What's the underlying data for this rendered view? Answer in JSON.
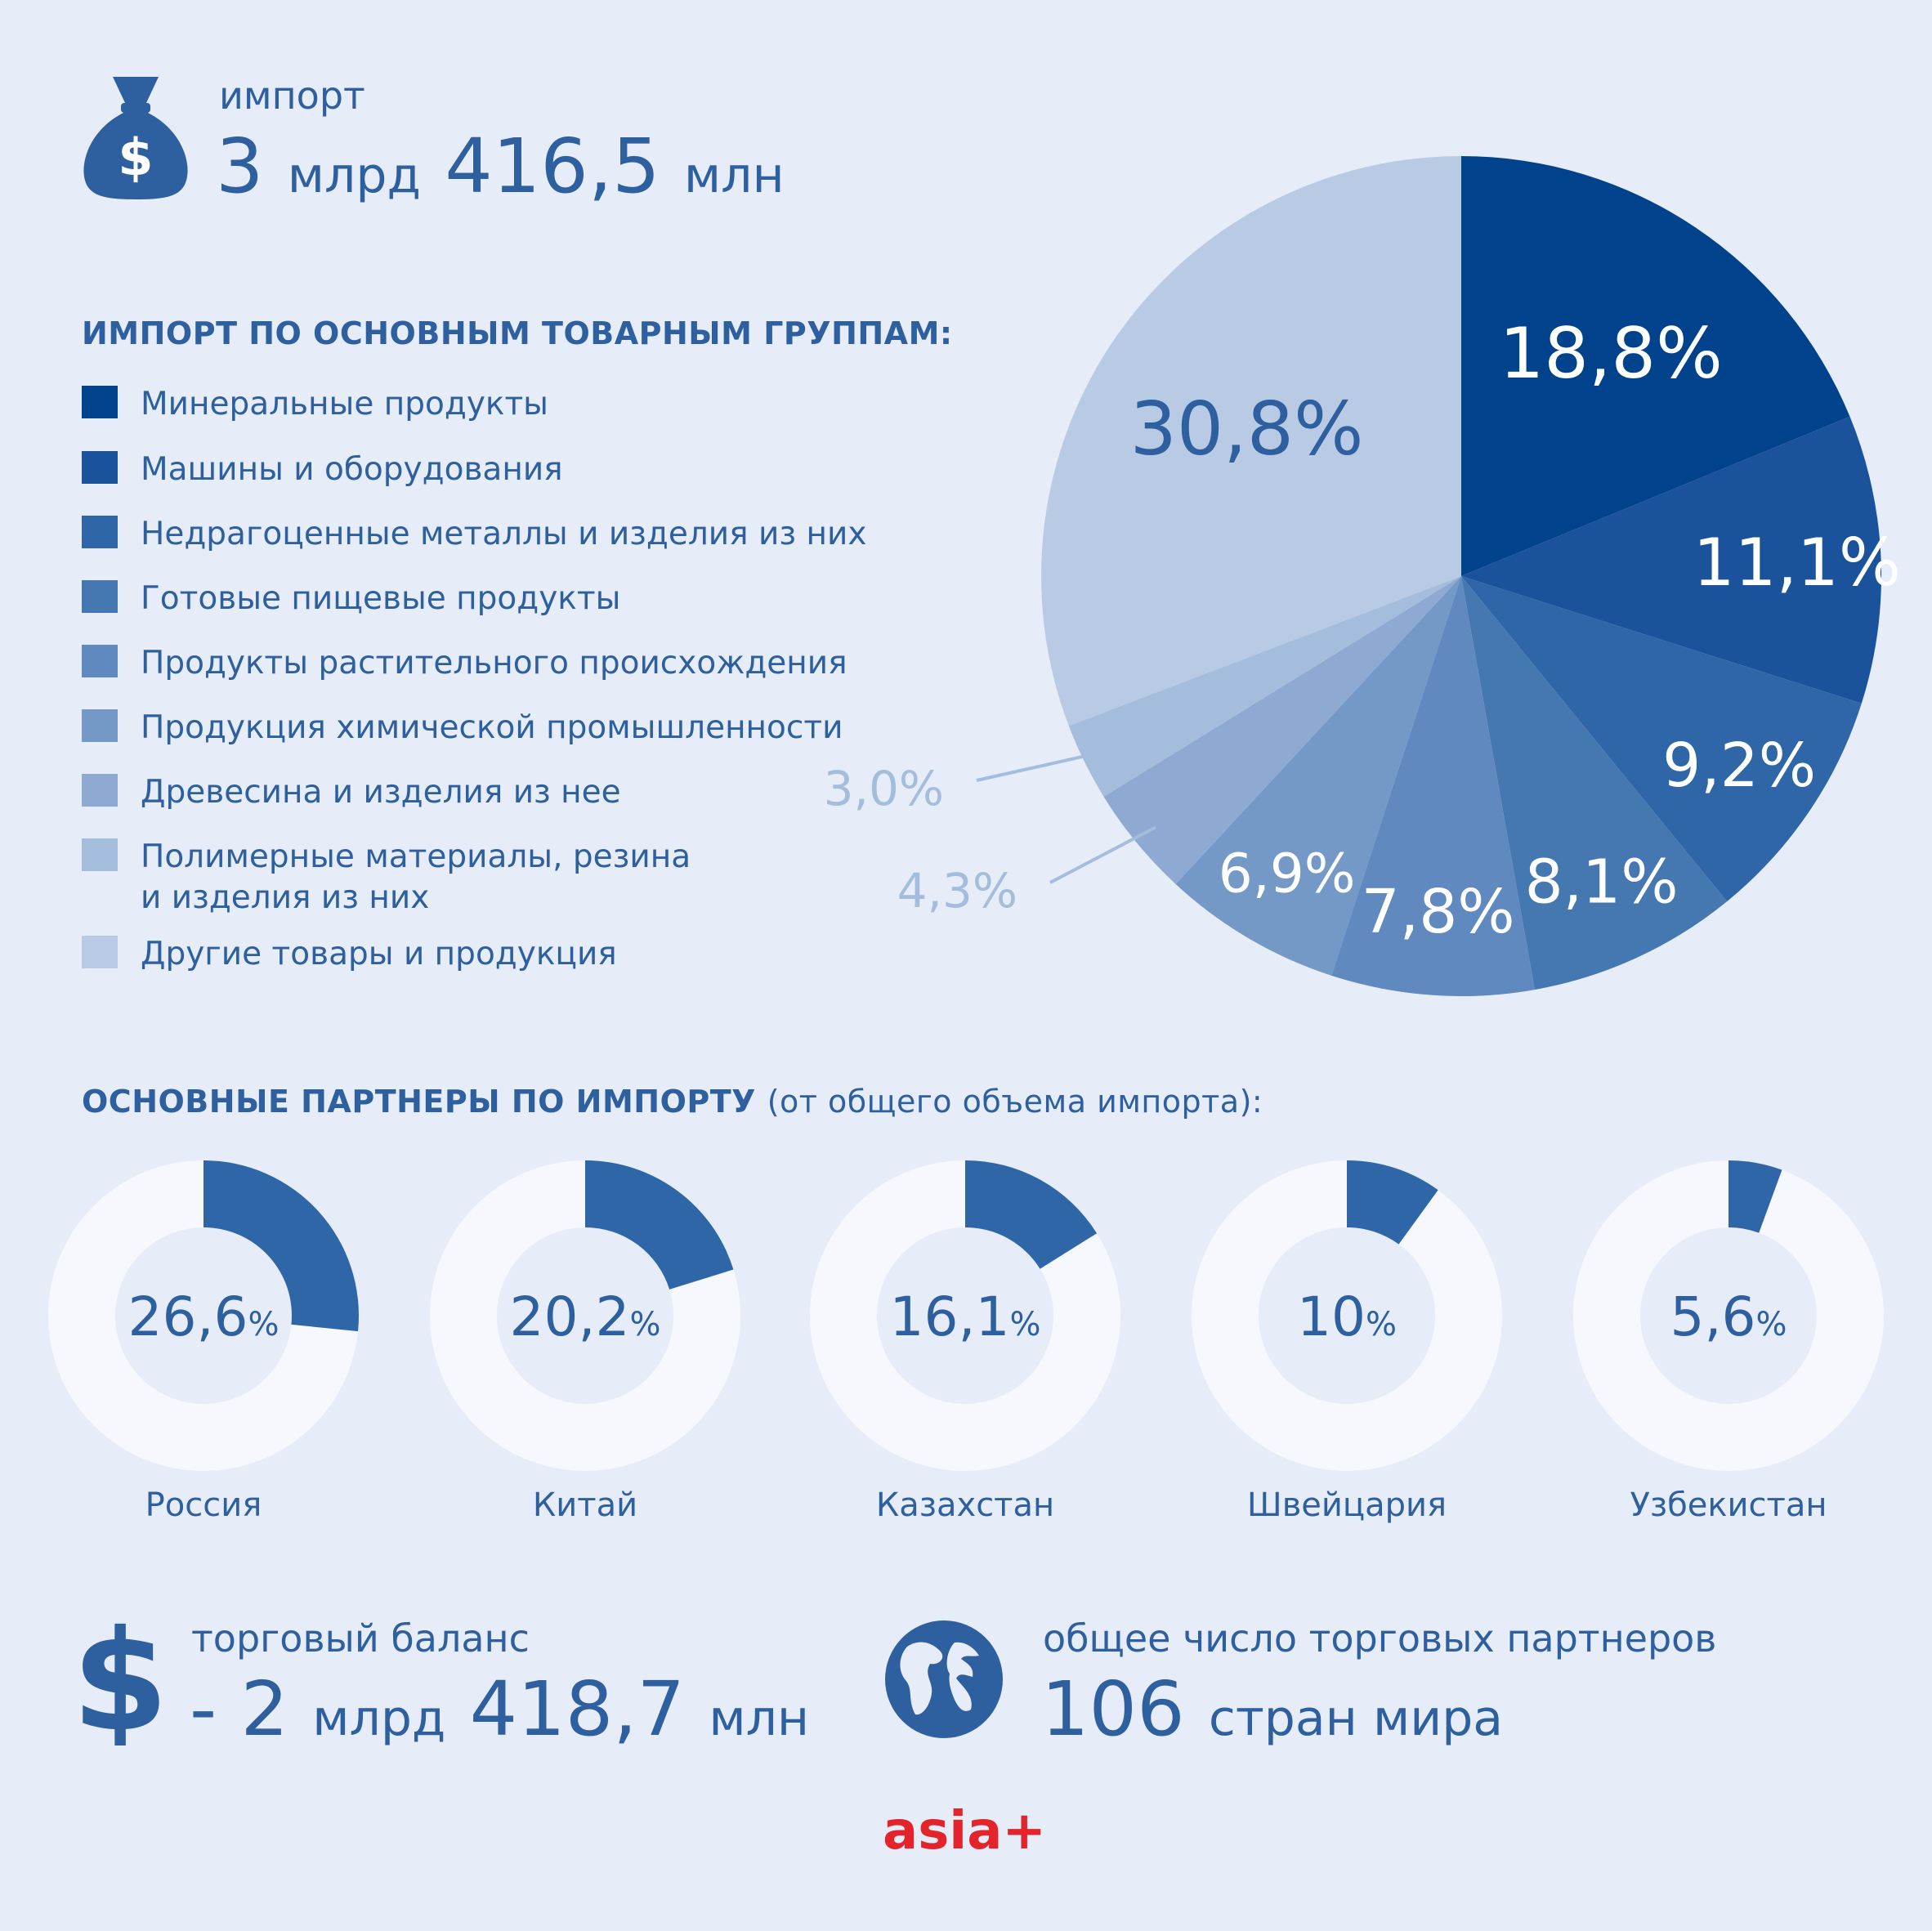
{
  "import_block": {
    "label": "импорт",
    "value_num1": "3",
    "value_unit1": "млрд",
    "value_num2": "416,5",
    "value_unit2": "млн",
    "icon": "money-bag-icon"
  },
  "groups_title": "ИМПОРТ ПО ОСНОВНЫМ ТОВАРНЫМ ГРУППАМ:",
  "legend": [
    {
      "label": "Минеральные продукты",
      "color": "#00428b"
    },
    {
      "label": "Машины и оборудования",
      "color": "#1a529b"
    },
    {
      "label": "Недрагоценные металлы и изделия из них",
      "color": "#2f66a8"
    },
    {
      "label": "Готовые пищевые продукты",
      "color": "#4577b1"
    },
    {
      "label": "Продукты растительного происхождения",
      "color": "#5f89bf"
    },
    {
      "label": "Продукция химической промышленности",
      "color": "#7499c7"
    },
    {
      "label": "Древесина и изделия из нее",
      "color": "#8eaad2"
    },
    {
      "label": "Полимерные материалы, резина",
      "label2": "и изделия из них",
      "color": "#a5bddc"
    },
    {
      "label": "Другие товары и продукция",
      "color": "#b9cbe4"
    }
  ],
  "chart_data": [
    {
      "type": "pie",
      "categories": [
        "Минеральные продукты",
        "Машины и оборудования",
        "Недрагоценные металлы и изделия из них",
        "Готовые пищевые продукты",
        "Продукты растительного происхождения",
        "Продукция химической промышленности",
        "Древесина и изделия из нее",
        "Полимерные материалы, резина и изделия из них",
        "Другие товары и продукция"
      ],
      "values": [
        18.8,
        11.1,
        9.2,
        8.1,
        7.8,
        6.9,
        4.3,
        3.0,
        30.8
      ],
      "data_labels": [
        "18,8%",
        "11,1%",
        "9,2%",
        "8,1%",
        "7,8%",
        "6,9%",
        "4,3%",
        "3,0%",
        "30,8%"
      ],
      "colors": [
        "#00428b",
        "#1a529b",
        "#2f66a8",
        "#4577b1",
        "#5f89bf",
        "#7499c7",
        "#8eaad2",
        "#a5bddc",
        "#b9cbe4"
      ]
    },
    {
      "type": "pie",
      "title": "ОСНОВНЫЕ ПАРТНЕРЫ ПО ИМПОРТУ",
      "subtitle": "(от общего объема импорта):",
      "categories": [
        "Россия",
        "Китай",
        "Казахстан",
        "Швейцария",
        "Узбекистан"
      ],
      "values": [
        26.6,
        20.2,
        16.1,
        10,
        5.6
      ],
      "data_labels": [
        "26,6",
        "20,2",
        "16,1",
        "10",
        "5,6"
      ],
      "percent_sign": "%",
      "fill_color": "#2f66a8",
      "track_color": "#f6f8fd"
    }
  ],
  "balance": {
    "label": "торговый баланс",
    "value_num1": "- 2",
    "value_unit1": "млрд",
    "value_num2": "418,7",
    "value_unit2": "млн",
    "icon": "dollar-icon"
  },
  "partners_total": {
    "label": "общее число торговых партнеров",
    "value_num": "106",
    "value_unit": "стран мира",
    "icon": "globe-icon"
  },
  "logo": "asia+"
}
